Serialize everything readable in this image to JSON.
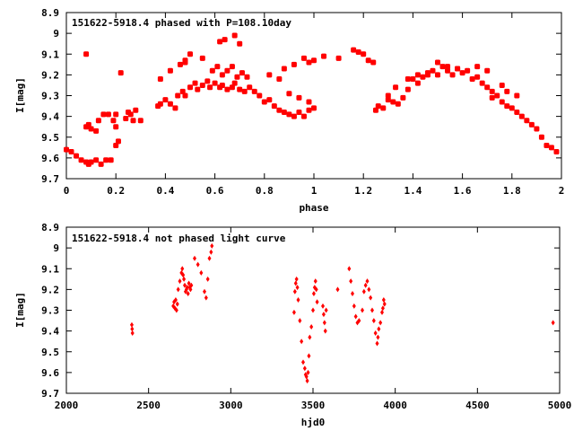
{
  "chart_data": [
    {
      "type": "scatter",
      "title": "151622-5918.4 phased with P=108.10day",
      "xlabel": "phase",
      "ylabel": "I[mag]",
      "xlim": [
        0,
        2
      ],
      "ylim": [
        9.7,
        8.9
      ],
      "y_inverted": true,
      "grid": false,
      "marker_color": "#ff0000",
      "marker": "filled-star",
      "xticks": [
        "0",
        "0.2",
        "0.4",
        "0.6",
        "0.8",
        "1",
        "1.2",
        "1.4",
        "1.6",
        "1.8",
        "2"
      ],
      "yticks": [
        "8.9",
        "9",
        "9.1",
        "9.2",
        "9.3",
        "9.4",
        "9.5",
        "9.6",
        "9.7"
      ],
      "x": [
        0.0,
        0.02,
        0.04,
        0.06,
        0.08,
        0.09,
        0.1,
        0.12,
        0.14,
        0.16,
        0.18,
        0.2,
        0.21,
        0.08,
        0.09,
        0.1,
        0.12,
        0.13,
        0.15,
        0.17,
        0.19,
        0.2,
        0.2,
        0.24,
        0.25,
        0.26,
        0.27,
        0.28,
        0.3,
        0.37,
        0.38,
        0.4,
        0.42,
        0.44,
        0.45,
        0.47,
        0.48,
        0.5,
        0.52,
        0.53,
        0.55,
        0.57,
        0.58,
        0.6,
        0.62,
        0.63,
        0.65,
        0.67,
        0.68,
        0.7,
        0.72,
        0.74,
        0.76,
        0.78,
        0.8,
        0.82,
        0.84,
        0.86,
        0.88,
        0.9,
        0.92,
        0.94,
        0.96,
        0.98,
        1.0,
        0.38,
        0.42,
        0.46,
        0.48,
        0.5,
        0.55,
        0.59,
        0.61,
        0.63,
        0.65,
        0.67,
        0.69,
        0.71,
        0.73,
        0.08,
        0.22,
        0.48,
        0.62,
        0.64,
        0.68,
        0.7,
        0.88,
        0.92,
        0.96,
        0.98,
        1.0,
        1.04,
        1.1,
        1.16,
        1.18,
        1.2,
        1.22,
        1.24,
        1.26,
        1.28,
        1.3,
        1.32,
        1.34,
        1.36,
        1.38,
        1.4,
        1.42,
        1.44,
        1.46,
        1.48,
        1.5,
        1.52,
        1.54,
        1.56,
        1.58,
        1.6,
        1.62,
        1.64,
        1.66,
        1.68,
        1.7,
        1.72,
        1.74,
        1.76,
        1.78,
        1.8,
        1.82,
        1.84,
        1.86,
        1.88,
        1.9,
        1.92,
        1.94,
        1.96,
        1.98,
        1.25,
        1.3,
        1.33,
        1.38,
        1.42,
        1.46,
        1.5,
        1.54,
        1.58,
        1.66,
        1.7,
        1.72,
        1.76,
        1.78,
        1.82,
        0.82,
        0.86,
        0.9,
        0.94,
        0.98
      ],
      "y": [
        9.56,
        9.57,
        9.59,
        9.61,
        9.62,
        9.63,
        9.62,
        9.61,
        9.63,
        9.61,
        9.61,
        9.54,
        9.52,
        9.45,
        9.44,
        9.46,
        9.47,
        9.42,
        9.39,
        9.39,
        9.42,
        9.39,
        9.45,
        9.41,
        9.38,
        9.39,
        9.42,
        9.37,
        9.42,
        9.35,
        9.34,
        9.32,
        9.34,
        9.36,
        9.3,
        9.28,
        9.3,
        9.26,
        9.24,
        9.27,
        9.25,
        9.23,
        9.26,
        9.24,
        9.26,
        9.25,
        9.27,
        9.26,
        9.24,
        9.27,
        9.28,
        9.26,
        9.28,
        9.3,
        9.33,
        9.32,
        9.35,
        9.37,
        9.38,
        9.39,
        9.4,
        9.38,
        9.4,
        9.37,
        9.36,
        9.22,
        9.18,
        9.15,
        9.13,
        9.1,
        9.12,
        9.18,
        9.16,
        9.2,
        9.18,
        9.16,
        9.21,
        9.19,
        9.21,
        9.1,
        9.19,
        9.14,
        9.04,
        9.03,
        9.01,
        9.05,
        9.17,
        9.15,
        9.12,
        9.14,
        9.13,
        9.11,
        9.12,
        9.08,
        9.09,
        9.1,
        9.13,
        9.14,
        9.35,
        9.36,
        9.32,
        9.33,
        9.34,
        9.31,
        9.27,
        9.22,
        9.2,
        9.21,
        9.19,
        9.18,
        9.2,
        9.16,
        9.18,
        9.2,
        9.17,
        9.19,
        9.18,
        9.22,
        9.21,
        9.24,
        9.26,
        9.28,
        9.3,
        9.33,
        9.35,
        9.36,
        9.38,
        9.4,
        9.42,
        9.44,
        9.46,
        9.5,
        9.54,
        9.55,
        9.57,
        9.37,
        9.3,
        9.26,
        9.22,
        9.24,
        9.2,
        9.14,
        9.16,
        9.17,
        9.16,
        9.18,
        9.31,
        9.25,
        9.28,
        9.3,
        9.2,
        9.22,
        9.29,
        9.31,
        9.33
      ]
    },
    {
      "type": "scatter",
      "title": "151622-5918.4 not phased light curve",
      "xlabel": "hjd0",
      "ylabel": "I[mag]",
      "xlim": [
        2000,
        5000
      ],
      "ylim": [
        9.7,
        8.9
      ],
      "y_inverted": true,
      "grid": false,
      "marker_color": "#ff0000",
      "marker": "small-diamond",
      "xticks": [
        "2000",
        "2500",
        "3000",
        "3500",
        "4000",
        "4500",
        "5000"
      ],
      "yticks": [
        "8.9",
        "9",
        "9.1",
        "9.2",
        "9.3",
        "9.4",
        "9.5",
        "9.6",
        "9.7"
      ],
      "x": [
        2398,
        2400,
        2402,
        2650,
        2655,
        2660,
        2665,
        2670,
        2675,
        2680,
        2690,
        2700,
        2705,
        2710,
        2715,
        2720,
        2725,
        2730,
        2735,
        2740,
        2745,
        2750,
        2755,
        2760,
        2780,
        2800,
        2820,
        2840,
        2850,
        2860,
        2870,
        2880,
        2885,
        3385,
        3390,
        3395,
        3400,
        3405,
        3410,
        3420,
        3430,
        3440,
        3450,
        3455,
        3460,
        3465,
        3470,
        3475,
        3480,
        3490,
        3500,
        3505,
        3510,
        3515,
        3520,
        3525,
        3560,
        3565,
        3570,
        3575,
        3580,
        3650,
        3720,
        3730,
        3740,
        3750,
        3760,
        3770,
        3780,
        3800,
        3810,
        3820,
        3830,
        3840,
        3850,
        3860,
        3870,
        3880,
        3890,
        3895,
        3900,
        3910,
        3920,
        3925,
        3930,
        3935,
        4960
      ],
      "y": [
        9.37,
        9.39,
        9.41,
        9.28,
        9.26,
        9.29,
        9.25,
        9.3,
        9.27,
        9.2,
        9.16,
        9.12,
        9.1,
        9.13,
        9.15,
        9.18,
        9.21,
        9.2,
        9.19,
        9.22,
        9.17,
        9.19,
        9.2,
        9.18,
        9.05,
        9.08,
        9.12,
        9.21,
        9.24,
        9.15,
        9.05,
        9.02,
        8.99,
        9.31,
        9.21,
        9.17,
        9.15,
        9.19,
        9.25,
        9.35,
        9.45,
        9.55,
        9.58,
        9.61,
        9.62,
        9.64,
        9.6,
        9.52,
        9.43,
        9.38,
        9.3,
        9.22,
        9.19,
        9.16,
        9.2,
        9.26,
        9.28,
        9.32,
        9.36,
        9.4,
        9.3,
        9.2,
        9.1,
        9.16,
        9.22,
        9.28,
        9.33,
        9.36,
        9.35,
        9.3,
        9.21,
        9.18,
        9.16,
        9.2,
        9.24,
        9.3,
        9.35,
        9.41,
        9.46,
        9.43,
        9.39,
        9.36,
        9.31,
        9.29,
        9.25,
        9.27,
        9.36
      ]
    }
  ]
}
